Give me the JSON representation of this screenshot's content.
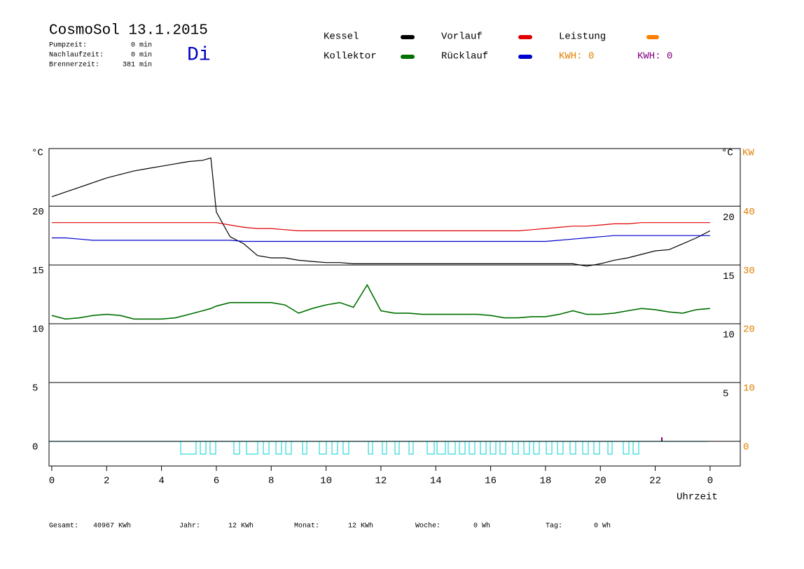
{
  "chart_data": {
    "type": "line",
    "title": "CosmoSol 13.1.2015",
    "day": "Di",
    "info": [
      [
        "Pumpzeit:",
        "0 min"
      ],
      [
        "Nachlaufzeit:",
        "0 min"
      ],
      [
        "Brennerzeit:",
        "381 min"
      ]
    ],
    "y_label": "°C",
    "y_label_right": "°C",
    "y2_label": "KW",
    "x_label": "Uhrzeit",
    "x": [
      0,
      0.5,
      1,
      1.5,
      2,
      2.5,
      3,
      3.5,
      4,
      4.5,
      5,
      5.5,
      5.8,
      6,
      6.5,
      7,
      7.5,
      8,
      8.5,
      9,
      9.5,
      10,
      10.5,
      11,
      11.5,
      12,
      12.5,
      13,
      13.5,
      14,
      14.5,
      15,
      15.5,
      16,
      16.5,
      17,
      17.5,
      18,
      18.5,
      19,
      19.5,
      20,
      20.5,
      21,
      21.5,
      22,
      22.5,
      23,
      23.5,
      24
    ],
    "series": [
      {
        "name": "Kessel",
        "color": "#000000",
        "values": [
          20.8,
          21.2,
          21.6,
          22.0,
          22.4,
          22.7,
          23.0,
          23.2,
          23.4,
          23.6,
          23.8,
          23.9,
          24.1,
          19.5,
          17.4,
          16.8,
          15.8,
          15.6,
          15.6,
          15.4,
          15.3,
          15.2,
          15.2,
          15.1,
          15.1,
          15.1,
          15.1,
          15.1,
          15.1,
          15.1,
          15.1,
          15.1,
          15.1,
          15.1,
          15.1,
          15.1,
          15.1,
          15.1,
          15.1,
          15.1,
          14.9,
          15.1,
          15.4,
          15.6,
          15.9,
          16.2,
          16.3,
          16.8,
          17.3,
          17.9
        ]
      },
      {
        "name": "Kollektor",
        "color": "#007000",
        "values": [
          10.7,
          10.4,
          10.5,
          10.7,
          10.8,
          10.7,
          10.4,
          10.4,
          10.4,
          10.5,
          10.8,
          11.1,
          11.3,
          11.5,
          11.8,
          11.8,
          11.8,
          11.8,
          11.6,
          10.9,
          11.3,
          11.6,
          11.8,
          11.4,
          13.3,
          11.1,
          10.9,
          10.9,
          10.8,
          10.8,
          10.8,
          10.8,
          10.8,
          10.7,
          10.5,
          10.5,
          10.6,
          10.6,
          10.8,
          11.1,
          10.8,
          10.8,
          10.9,
          11.1,
          11.3,
          11.2,
          11.0,
          10.9,
          11.2,
          11.3
        ]
      },
      {
        "name": "Vorlauf",
        "color": "#e00000",
        "values": [
          18.6,
          18.6,
          18.6,
          18.6,
          18.6,
          18.6,
          18.6,
          18.6,
          18.6,
          18.6,
          18.6,
          18.6,
          18.6,
          18.6,
          18.4,
          18.2,
          18.1,
          18.1,
          18.0,
          17.9,
          17.9,
          17.9,
          17.9,
          17.9,
          17.9,
          17.9,
          17.9,
          17.9,
          17.9,
          17.9,
          17.9,
          17.9,
          17.9,
          17.9,
          17.9,
          17.9,
          18.0,
          18.1,
          18.2,
          18.3,
          18.3,
          18.4,
          18.5,
          18.5,
          18.6,
          18.6,
          18.6,
          18.6,
          18.6,
          18.6
        ]
      },
      {
        "name": "Rücklauf",
        "color": "#0000d0",
        "values": [
          17.3,
          17.3,
          17.2,
          17.1,
          17.1,
          17.1,
          17.1,
          17.1,
          17.1,
          17.1,
          17.1,
          17.1,
          17.1,
          17.1,
          17.1,
          17.0,
          17.0,
          17.0,
          17.0,
          17.0,
          17.0,
          17.0,
          17.0,
          17.0,
          17.0,
          17.0,
          17.0,
          17.0,
          17.0,
          17.0,
          17.0,
          17.0,
          17.0,
          17.0,
          17.0,
          17.0,
          17.0,
          17.0,
          17.1,
          17.2,
          17.3,
          17.4,
          17.5,
          17.5,
          17.5,
          17.5,
          17.5,
          17.5,
          17.5,
          17.5
        ]
      }
    ],
    "extra_legend": [
      {
        "name": "Leistung",
        "color": "#ff8000"
      }
    ],
    "kwh_labels": [
      {
        "text": "KWH: 0",
        "color": "#e08000"
      },
      {
        "text": "KWH: 0",
        "color": "#800080"
      }
    ],
    "xlim": [
      -0.1,
      25.1
    ],
    "xticks": [
      0,
      2,
      4,
      6,
      8,
      10,
      12,
      14,
      16,
      18,
      20,
      22,
      {
        "value": 24,
        "label": "0"
      }
    ],
    "ylim": [
      -2.1,
      24.9
    ],
    "yticks": [
      0,
      5,
      10,
      15,
      20
    ],
    "y2lim": [
      -4.2,
      49.8
    ],
    "y2ticks": [
      0,
      10,
      20,
      30,
      40
    ],
    "y2color": "#e08000",
    "grid": true,
    "footer": [
      [
        "Gesamt:",
        "40967 KWh"
      ],
      [
        "Jahr:",
        "12 KWh"
      ],
      [
        "Monat:",
        "12 KWh"
      ],
      [
        "Woche:",
        "0 Wh"
      ],
      [
        "Tag:",
        "0 Wh"
      ]
    ]
  }
}
